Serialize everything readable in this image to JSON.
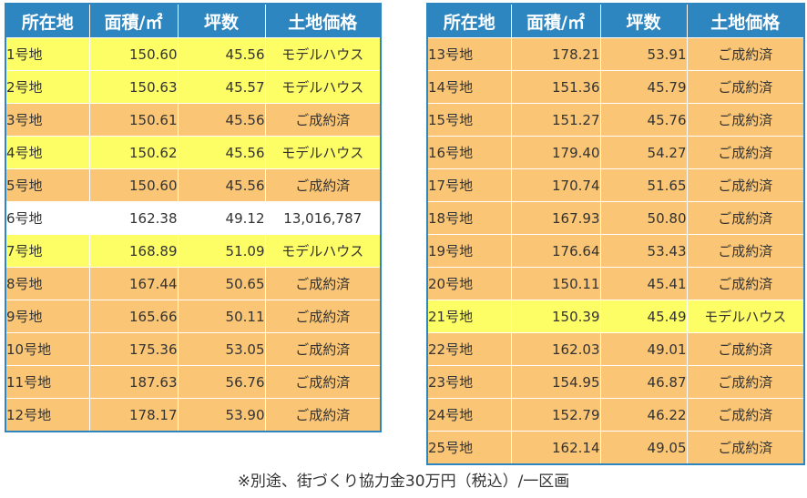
{
  "headers": [
    "所在地",
    "面積/㎡",
    "坪数",
    "土地価格"
  ],
  "colors": {
    "header": "#2e86c1",
    "sold": "#fac575",
    "model": "#fdfd65",
    "available": "#ffffff"
  },
  "left_table": [
    {
      "lot": "1号地",
      "area": "150.60",
      "tsubo": "45.56",
      "price": "モデルハウス",
      "status": "model"
    },
    {
      "lot": "2号地",
      "area": "150.63",
      "tsubo": "45.57",
      "price": "モデルハウス",
      "status": "model"
    },
    {
      "lot": "3号地",
      "area": "150.61",
      "tsubo": "45.56",
      "price": "ご成約済",
      "status": "sold"
    },
    {
      "lot": "4号地",
      "area": "150.62",
      "tsubo": "45.56",
      "price": "モデルハウス",
      "status": "model"
    },
    {
      "lot": "5号地",
      "area": "150.60",
      "tsubo": "45.56",
      "price": "ご成約済",
      "status": "sold"
    },
    {
      "lot": "6号地",
      "area": "162.38",
      "tsubo": "49.12",
      "price": "13,016,787",
      "status": "avail"
    },
    {
      "lot": "7号地",
      "area": "168.89",
      "tsubo": "51.09",
      "price": "モデルハウス",
      "status": "model"
    },
    {
      "lot": "8号地",
      "area": "167.44",
      "tsubo": "50.65",
      "price": "ご成約済",
      "status": "sold"
    },
    {
      "lot": "9号地",
      "area": "165.66",
      "tsubo": "50.11",
      "price": "ご成約済",
      "status": "sold"
    },
    {
      "lot": "10号地",
      "area": "175.36",
      "tsubo": "53.05",
      "price": "ご成約済",
      "status": "sold"
    },
    {
      "lot": "11号地",
      "area": "187.63",
      "tsubo": "56.76",
      "price": "ご成約済",
      "status": "sold"
    },
    {
      "lot": "12号地",
      "area": "178.17",
      "tsubo": "53.90",
      "price": "ご成約済",
      "status": "sold"
    }
  ],
  "right_table": [
    {
      "lot": "13号地",
      "area": "178.21",
      "tsubo": "53.91",
      "price": "ご成約済",
      "status": "sold"
    },
    {
      "lot": "14号地",
      "area": "151.36",
      "tsubo": "45.79",
      "price": "ご成約済",
      "status": "sold"
    },
    {
      "lot": "15号地",
      "area": "151.27",
      "tsubo": "45.76",
      "price": "ご成約済",
      "status": "sold"
    },
    {
      "lot": "16号地",
      "area": "179.40",
      "tsubo": "54.27",
      "price": "ご成約済",
      "status": "sold"
    },
    {
      "lot": "17号地",
      "area": "170.74",
      "tsubo": "51.65",
      "price": "ご成約済",
      "status": "sold"
    },
    {
      "lot": "18号地",
      "area": "167.93",
      "tsubo": "50.80",
      "price": "ご成約済",
      "status": "sold"
    },
    {
      "lot": "19号地",
      "area": "176.64",
      "tsubo": "53.43",
      "price": "ご成約済",
      "status": "sold"
    },
    {
      "lot": "20号地",
      "area": "150.11",
      "tsubo": "45.41",
      "price": "ご成約済",
      "status": "sold"
    },
    {
      "lot": "21号地",
      "area": "150.39",
      "tsubo": "45.49",
      "price": "モデルハウス",
      "status": "model"
    },
    {
      "lot": "22号地",
      "area": "162.03",
      "tsubo": "49.01",
      "price": "ご成約済",
      "status": "sold"
    },
    {
      "lot": "23号地",
      "area": "154.95",
      "tsubo": "46.87",
      "price": "ご成約済",
      "status": "sold"
    },
    {
      "lot": "24号地",
      "area": "152.79",
      "tsubo": "46.22",
      "price": "ご成約済",
      "status": "sold"
    },
    {
      "lot": "25号地",
      "area": "162.14",
      "tsubo": "49.05",
      "price": "ご成約済",
      "status": "sold"
    }
  ],
  "footnote": "※別途、街づくり協力金30万円（税込）/一区画"
}
